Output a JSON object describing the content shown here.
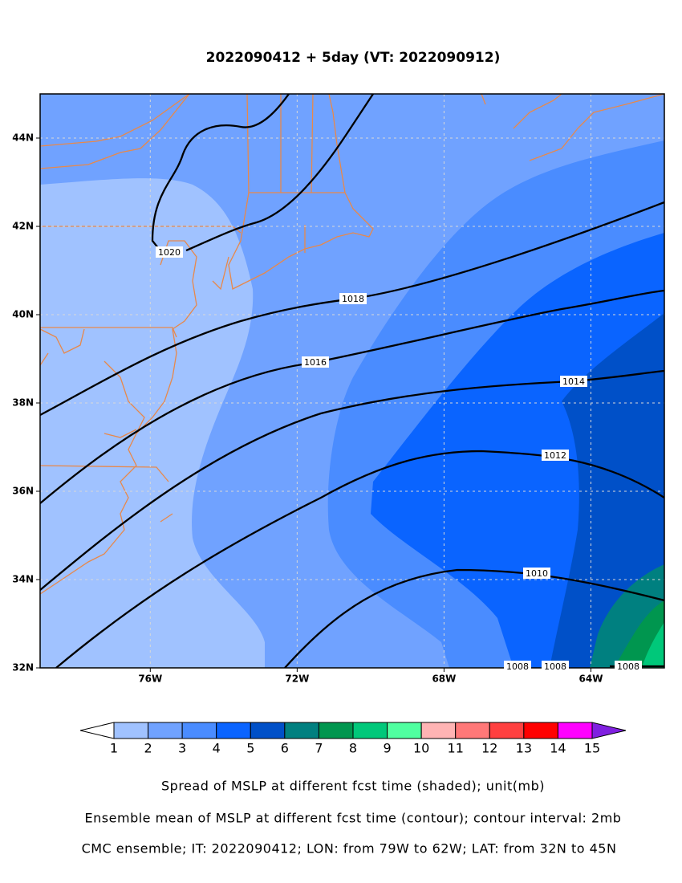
{
  "title": "2022090412 + 5day (VT: 2022090912)",
  "map": {
    "xlim": [
      -79,
      -62
    ],
    "ylim": [
      32,
      45
    ],
    "xticks": [
      {
        "value": -76,
        "label": "76W"
      },
      {
        "value": -72,
        "label": "72W"
      },
      {
        "value": -68,
        "label": "68W"
      },
      {
        "value": -64,
        "label": "64W"
      }
    ],
    "yticks": [
      {
        "value": 32,
        "label": "32N"
      },
      {
        "value": 34,
        "label": "34N"
      },
      {
        "value": 36,
        "label": "36N"
      },
      {
        "value": 38,
        "label": "38N"
      },
      {
        "value": 40,
        "label": "40N"
      },
      {
        "value": 42,
        "label": "42N"
      },
      {
        "value": 44,
        "label": "44N"
      }
    ],
    "grid": true
  },
  "contour_labels": [
    1020,
    1018,
    1016,
    1014,
    1012,
    1010,
    1008,
    1008,
    1008
  ],
  "colorbar": {
    "levels": [
      1,
      2,
      3,
      4,
      5,
      6,
      7,
      8,
      9,
      10,
      11,
      12,
      13,
      14,
      15
    ],
    "colors": [
      "#ffffff",
      "#a0c2ff",
      "#70a2ff",
      "#4a8cff",
      "#0a64ff",
      "#0050c8",
      "#008080",
      "#00964f",
      "#00c87a",
      "#50ffa0",
      "#ffb4b4",
      "#ff7878",
      "#ff4040",
      "#ff0000",
      "#ff00ff",
      "#8020e0"
    ]
  },
  "captions": [
    "Spread of MSLP at different fcst time (shaded); unit(mb)",
    "Ensemble mean of MSLP at different fcst time (contour); contour interval: 2mb",
    "CMC ensemble; IT: 2022090412; LON: from 79W to 62W; LAT: from 32N to 45N"
  ]
}
